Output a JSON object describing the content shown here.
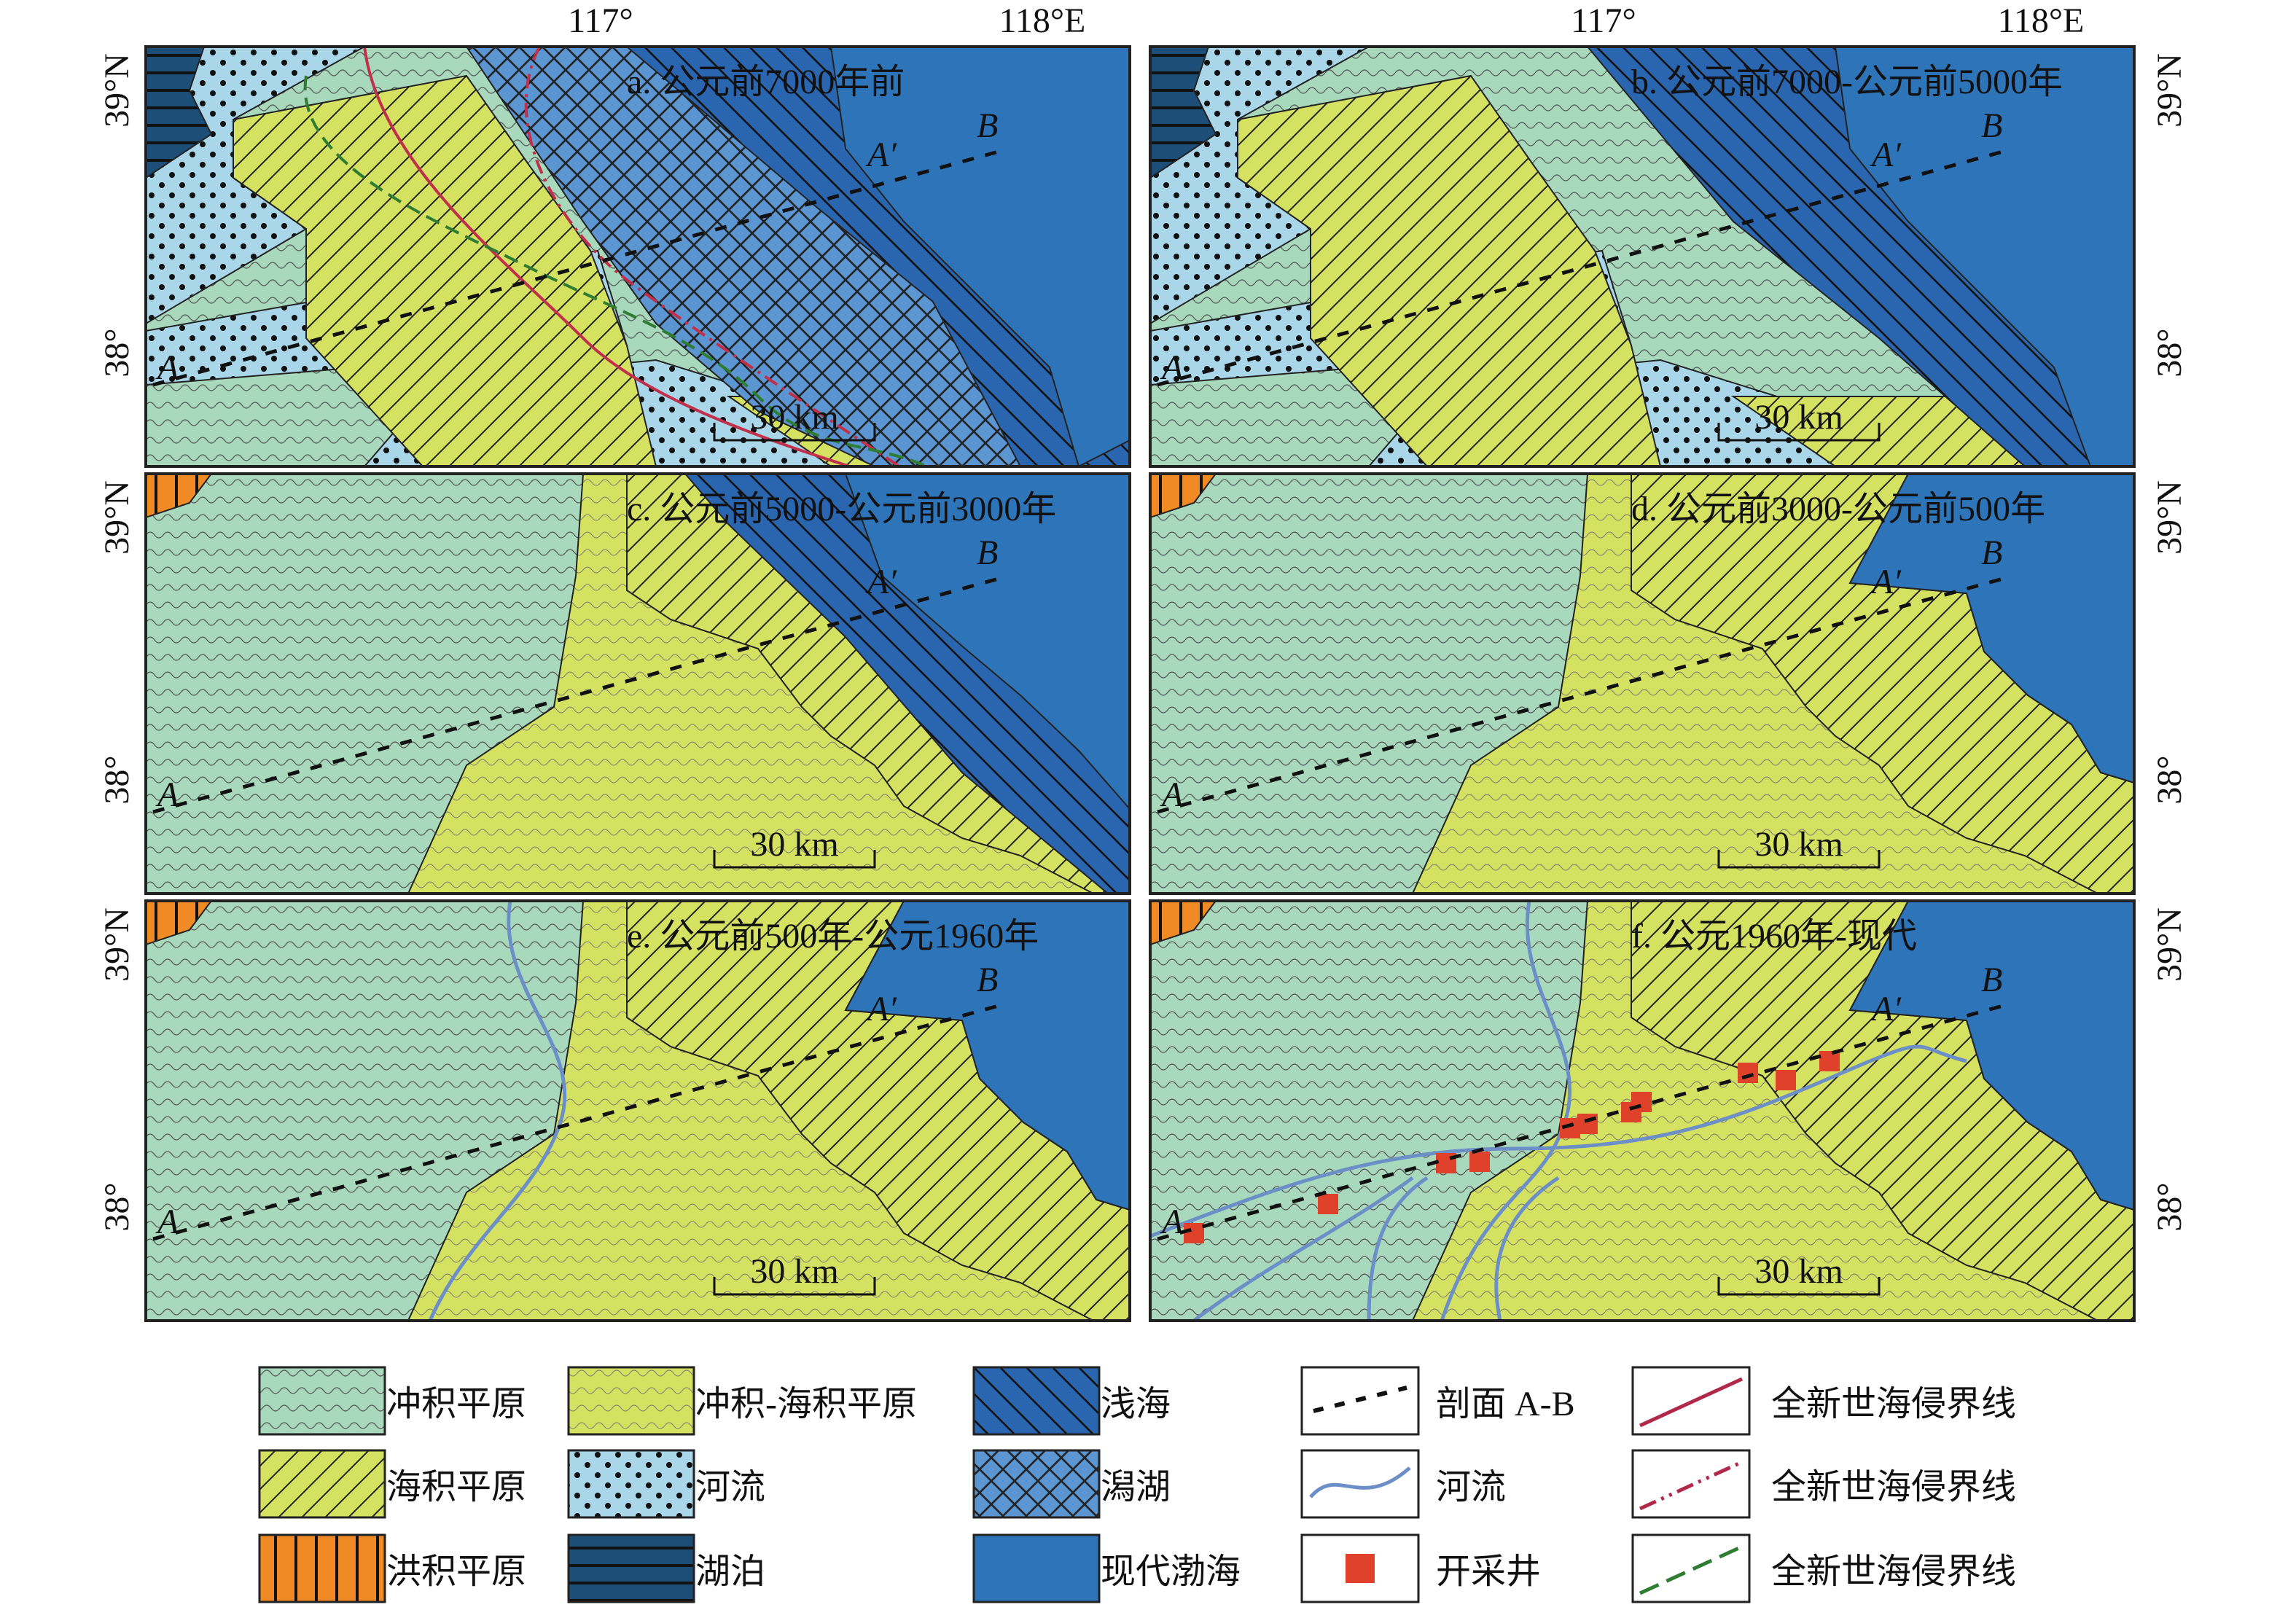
{
  "axes": {
    "x_labels": [
      "117°",
      "118°E"
    ],
    "y_labels": [
      "39°N",
      "38°"
    ]
  },
  "panels": [
    {
      "title": "a. 公元前7000年前",
      "scale": "30 km",
      "labels": [
        "A",
        "A′",
        "B"
      ]
    },
    {
      "title": "b. 公元前7000-公元前5000年",
      "scale": "30 km",
      "labels": [
        "A",
        "A′",
        "B"
      ]
    },
    {
      "title": "c. 公元前5000-公元前3000年",
      "scale": "30 km",
      "labels": [
        "A",
        "A′",
        "B"
      ]
    },
    {
      "title": "d. 公元前3000-公元前500年",
      "scale": "30 km",
      "labels": [
        "A",
        "A′",
        "B"
      ]
    },
    {
      "title": "e. 公元前500年-公元1960年",
      "scale": "30 km",
      "labels": [
        "A",
        "A′",
        "B"
      ]
    },
    {
      "title": "f. 公元1960年-现代",
      "scale": "30 km",
      "labels": [
        "A",
        "A′",
        "B"
      ]
    }
  ],
  "legend": [
    {
      "label": "冲积平原"
    },
    {
      "label": "冲积-海积平原"
    },
    {
      "label": "浅海"
    },
    {
      "label": "剖面 A-B"
    },
    {
      "label": "全新世海侵界线"
    },
    {
      "label": "海积平原"
    },
    {
      "label": "河流"
    },
    {
      "label": "潟湖"
    },
    {
      "label": "河流"
    },
    {
      "label": "全新世海侵界线"
    },
    {
      "label": "洪积平原"
    },
    {
      "label": "湖泊"
    },
    {
      "label": "现代渤海"
    },
    {
      "label": "开采井"
    },
    {
      "label": "全新世海侵界线"
    }
  ]
}
